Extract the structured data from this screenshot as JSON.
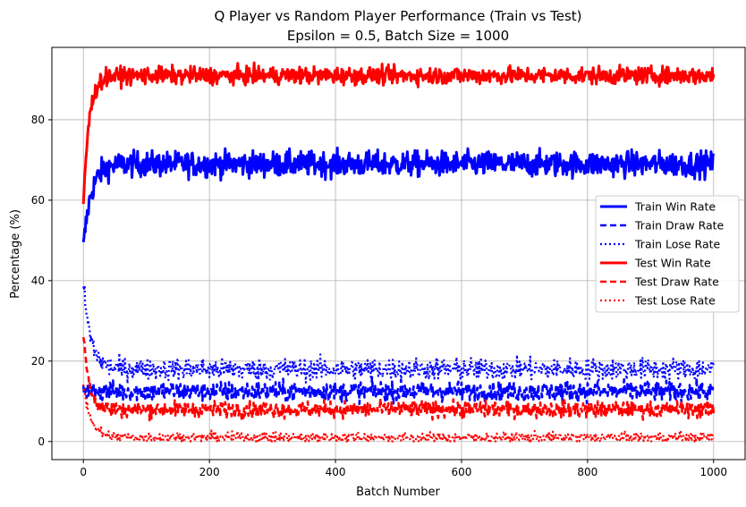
{
  "chart_data": {
    "type": "line",
    "title": "Q Player vs Random Player Performance (Train vs Test)",
    "subtitle": "Epsilon = 0.5, Batch Size = 1000",
    "xlabel": "Batch Number",
    "ylabel": "Percentage (%)",
    "xlim": [
      -50,
      1050
    ],
    "ylim": [
      -4.5,
      98
    ],
    "xticks": [
      0,
      200,
      400,
      600,
      800,
      1000
    ],
    "xtick_labels": [
      "0",
      "200",
      "400",
      "600",
      "800",
      "1000"
    ],
    "yticks": [
      0,
      20,
      40,
      60,
      80
    ],
    "ytick_labels": [
      "0",
      "20",
      "40",
      "60",
      "80"
    ],
    "grid": true,
    "legend_position": "center-right",
    "x": {
      "start": 0,
      "end": 1000,
      "step": 1
    },
    "series": [
      {
        "name": "Train Win Rate",
        "color": "#0000ff",
        "style": "solid",
        "width": 3,
        "start": 48,
        "plateau": 69,
        "tau": 12,
        "noise": 2.2
      },
      {
        "name": "Train Draw Rate",
        "color": "#0000ff",
        "style": "dashed",
        "width": 2.6,
        "start": 13,
        "plateau": 12.5,
        "tau": 10,
        "noise": 1.7
      },
      {
        "name": "Train Lose Rate",
        "color": "#0000ff",
        "style": "dotted",
        "width": 2.2,
        "start": 39,
        "plateau": 18,
        "tau": 12,
        "noise": 1.9
      },
      {
        "name": "Test Win Rate",
        "color": "#ff0000",
        "style": "solid",
        "width": 3,
        "start": 59,
        "plateau": 91,
        "tau": 9,
        "noise": 1.5
      },
      {
        "name": "Test Draw Rate",
        "color": "#ff0000",
        "style": "dashed",
        "width": 2.6,
        "start": 27,
        "plateau": 8,
        "tau": 9,
        "noise": 1.4
      },
      {
        "name": "Test Lose Rate",
        "color": "#ff0000",
        "style": "dotted",
        "width": 2.2,
        "start": 14,
        "plateau": 1,
        "tau": 12,
        "noise": 0.9
      }
    ]
  }
}
